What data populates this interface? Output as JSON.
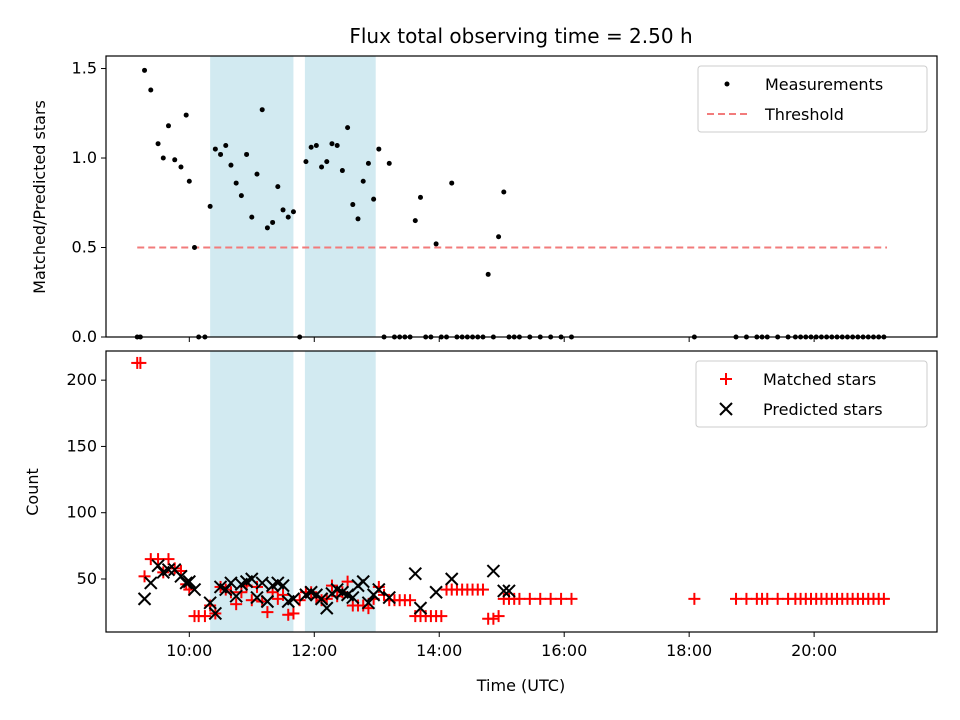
{
  "title": "Flux total observing time = 2.50 h",
  "chart_data": [
    {
      "type": "scatter",
      "ylabel": "Matched/Predicted stars",
      "ylim": [
        0,
        1.57
      ],
      "yticks": [
        "0.0",
        "0.5",
        "1.0",
        "1.5"
      ],
      "ytick_values": [
        0,
        0.5,
        1.0,
        1.5
      ],
      "legend_placement": "top-right",
      "grid": false,
      "threshold": {
        "name": "Threshold",
        "value": 0.5,
        "x_range": [
          "09:10",
          "21:10"
        ],
        "color": "#f27b7b"
      },
      "series": [
        {
          "name": "Measurements",
          "color": "#000000",
          "x": [
            "09:10",
            "09:13",
            "09:17",
            "09:23",
            "09:30",
            "09:35",
            "09:40",
            "09:46",
            "09:52",
            "09:57",
            "10:00",
            "10:05",
            "10:09",
            "10:15",
            "10:20",
            "10:25",
            "10:30",
            "10:35",
            "10:40",
            "10:45",
            "10:50",
            "10:55",
            "11:00",
            "11:05",
            "11:10",
            "11:15",
            "11:20",
            "11:25",
            "11:30",
            "11:35",
            "11:40",
            "11:46",
            "11:52",
            "11:57",
            "12:02",
            "12:07",
            "12:12",
            "12:17",
            "12:22",
            "12:27",
            "12:32",
            "12:37",
            "12:42",
            "12:47",
            "12:52",
            "12:57",
            "13:02",
            "13:07",
            "13:12",
            "13:17",
            "13:22",
            "13:27",
            "13:32",
            "13:37",
            "13:42",
            "13:47",
            "13:52",
            "13:57",
            "14:02",
            "14:07",
            "14:12",
            "14:17",
            "14:22",
            "14:27",
            "14:32",
            "14:37",
            "14:42",
            "14:47",
            "14:52",
            "14:57",
            "15:02",
            "15:07",
            "15:12",
            "15:17",
            "15:27",
            "15:37",
            "15:47",
            "15:57",
            "16:07",
            "18:05",
            "18:45",
            "18:55",
            "19:05",
            "19:10",
            "19:15",
            "19:25",
            "19:35",
            "19:42",
            "19:47",
            "19:52",
            "19:57",
            "20:02",
            "20:07",
            "20:12",
            "20:17",
            "20:22",
            "20:27",
            "20:32",
            "20:37",
            "20:42",
            "20:47",
            "20:52",
            "20:57",
            "21:02",
            "21:07"
          ],
          "y": [
            0,
            0,
            1.49,
            1.38,
            1.08,
            1.0,
            1.18,
            0.99,
            0.95,
            1.24,
            0.87,
            0.5,
            0,
            0,
            0.73,
            1.05,
            1.02,
            1.07,
            0.96,
            0.86,
            0.79,
            1.02,
            0.67,
            0.91,
            1.27,
            0.61,
            0.64,
            0.84,
            0.71,
            0.67,
            0.7,
            0,
            0.98,
            1.06,
            1.07,
            0.95,
            0.98,
            1.08,
            1.07,
            0.93,
            1.17,
            0.74,
            0.66,
            0.87,
            0.97,
            0.77,
            1.05,
            0,
            0.97,
            0,
            0,
            0,
            0,
            0.65,
            0.78,
            0,
            0,
            0.52,
            0,
            0,
            0.86,
            0,
            0,
            0,
            0,
            0,
            0,
            0.35,
            0,
            0.56,
            0.81,
            0,
            0,
            0,
            0,
            0,
            0,
            0,
            0,
            0,
            0,
            0,
            0,
            0,
            0,
            0,
            0,
            0,
            0,
            0,
            0,
            0,
            0,
            0,
            0,
            0,
            0,
            0,
            0,
            0,
            0,
            0,
            0,
            0,
            0
          ]
        }
      ]
    },
    {
      "type": "scatter",
      "xlabel": "Time (UTC)",
      "ylabel": "Count",
      "xlim": [
        "08:40",
        "21:58"
      ],
      "ylim": [
        10,
        222
      ],
      "xticks": [
        "10:00",
        "12:00",
        "14:00",
        "16:00",
        "18:00",
        "20:00"
      ],
      "yticks": [
        "50",
        "100",
        "150",
        "200"
      ],
      "ytick_values": [
        50,
        100,
        150,
        200
      ],
      "legend_placement": "top-right",
      "grid": false,
      "shaded_intervals": [
        [
          "10:20",
          "11:40"
        ],
        [
          "11:51",
          "12:59"
        ]
      ],
      "shade_color": "#add8e6",
      "series": [
        {
          "name": "Matched stars",
          "color": "#ff0000",
          "marker": "plus",
          "x": [
            "09:10",
            "09:13",
            "09:17",
            "09:23",
            "09:30",
            "09:35",
            "09:40",
            "09:46",
            "09:52",
            "09:57",
            "10:00",
            "10:05",
            "10:09",
            "10:15",
            "10:20",
            "10:25",
            "10:30",
            "10:35",
            "10:40",
            "10:45",
            "10:50",
            "10:55",
            "11:00",
            "11:05",
            "11:10",
            "11:15",
            "11:20",
            "11:25",
            "11:30",
            "11:35",
            "11:40",
            "11:46",
            "11:52",
            "11:57",
            "12:02",
            "12:07",
            "12:12",
            "12:17",
            "12:22",
            "12:27",
            "12:32",
            "12:37",
            "12:42",
            "12:47",
            "12:52",
            "12:57",
            "13:02",
            "13:07",
            "13:12",
            "13:17",
            "13:22",
            "13:27",
            "13:32",
            "13:37",
            "13:42",
            "13:47",
            "13:52",
            "13:57",
            "14:02",
            "14:07",
            "14:12",
            "14:17",
            "14:22",
            "14:27",
            "14:32",
            "14:37",
            "14:42",
            "14:47",
            "14:52",
            "14:57",
            "15:02",
            "15:07",
            "15:12",
            "15:17",
            "15:27",
            "15:37",
            "15:47",
            "15:57",
            "16:07",
            "18:05",
            "18:45",
            "18:55",
            "19:05",
            "19:10",
            "19:15",
            "19:25",
            "19:35",
            "19:42",
            "19:47",
            "19:52",
            "19:57",
            "20:02",
            "20:07",
            "20:12",
            "20:17",
            "20:22",
            "20:27",
            "20:32",
            "20:37",
            "20:42",
            "20:47",
            "20:52",
            "20:57",
            "21:02",
            "21:07"
          ],
          "y": [
            213,
            213,
            52,
            65,
            65,
            55,
            65,
            58,
            56,
            46,
            42,
            22,
            22,
            22,
            30,
            24,
            44,
            42,
            40,
            31,
            40,
            45,
            34,
            44,
            33,
            25,
            40,
            35,
            38,
            23,
            24,
            34,
            40,
            40,
            36,
            34,
            35,
            45,
            37,
            40,
            48,
            30,
            30,
            30,
            28,
            35,
            44,
            38,
            34,
            34,
            34,
            34,
            34,
            22,
            22,
            22,
            22,
            22,
            22,
            42,
            42,
            42,
            42,
            42,
            42,
            42,
            42,
            20,
            20,
            22,
            35,
            35,
            35,
            35,
            35,
            35,
            35,
            35,
            35,
            35,
            35,
            35,
            35,
            35,
            35,
            35,
            35,
            35,
            35,
            35,
            35,
            35,
            35,
            35,
            35,
            35,
            35,
            35,
            35,
            35,
            35,
            35,
            35,
            35,
            35
          ]
        },
        {
          "name": "Predicted stars",
          "color": "#000000",
          "marker": "cross",
          "x": [
            "09:17",
            "09:23",
            "09:30",
            "09:35",
            "09:40",
            "09:46",
            "09:52",
            "09:57",
            "10:00",
            "10:05",
            "10:20",
            "10:25",
            "10:30",
            "10:35",
            "10:40",
            "10:45",
            "10:50",
            "10:55",
            "11:00",
            "11:05",
            "11:10",
            "11:15",
            "11:20",
            "11:25",
            "11:30",
            "11:35",
            "11:40",
            "11:52",
            "11:57",
            "12:02",
            "12:07",
            "12:12",
            "12:17",
            "12:22",
            "12:27",
            "12:32",
            "12:37",
            "12:42",
            "12:47",
            "12:52",
            "12:57",
            "13:02",
            "13:12",
            "13:37",
            "13:42",
            "13:57",
            "14:12",
            "14:52",
            "15:02",
            "15:07"
          ],
          "y": [
            35,
            47,
            60,
            55,
            57,
            57,
            52,
            47,
            48,
            42,
            32,
            24,
            44,
            42,
            47,
            37,
            46,
            48,
            50,
            36,
            47,
            33,
            45,
            47,
            45,
            33,
            35,
            38,
            40,
            38,
            35,
            28,
            39,
            42,
            40,
            38,
            36,
            45,
            48,
            32,
            38,
            42,
            36,
            54,
            28,
            40,
            50,
            56,
            41,
            41
          ]
        }
      ]
    }
  ]
}
